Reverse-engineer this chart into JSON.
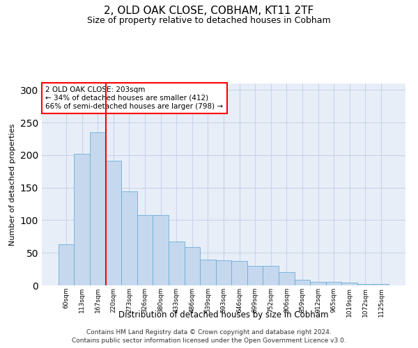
{
  "title": "2, OLD OAK CLOSE, COBHAM, KT11 2TF",
  "subtitle": "Size of property relative to detached houses in Cobham",
  "xlabel": "Distribution of detached houses by size in Cobham",
  "ylabel": "Number of detached properties",
  "categories": [
    "60sqm",
    "113sqm",
    "167sqm",
    "220sqm",
    "273sqm",
    "326sqm",
    "380sqm",
    "433sqm",
    "486sqm",
    "539sqm",
    "593sqm",
    "646sqm",
    "699sqm",
    "752sqm",
    "806sqm",
    "859sqm",
    "912sqm",
    "965sqm",
    "1019sqm",
    "1072sqm",
    "1125sqm"
  ],
  "values": [
    63,
    202,
    235,
    191,
    144,
    108,
    108,
    67,
    59,
    40,
    38,
    37,
    30,
    30,
    20,
    9,
    5,
    5,
    4,
    2,
    2
  ],
  "bar_color": "#c5d8ee",
  "bar_edge_color": "#6baed6",
  "vline_x_index": 2.5,
  "vline_color": "red",
  "annotation_text": "2 OLD OAK CLOSE: 203sqm\n← 34% of detached houses are smaller (412)\n66% of semi-detached houses are larger (798) →",
  "annotation_box_color": "red",
  "ylim": [
    0,
    310
  ],
  "grid_color": "#c8d4e8",
  "background_color": "#e8eef8",
  "footer1": "Contains HM Land Registry data © Crown copyright and database right 2024.",
  "footer2": "Contains public sector information licensed under the Open Government Licence v3.0."
}
